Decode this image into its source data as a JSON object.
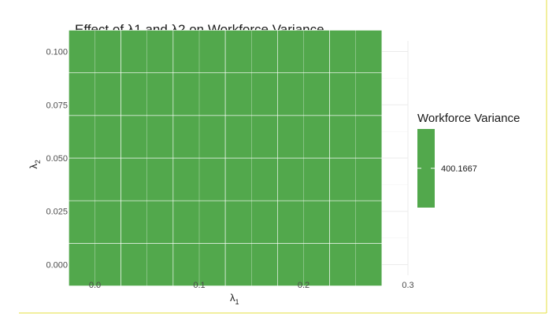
{
  "chart_data": {
    "type": "heatmap",
    "title": "Effect of λ1 and λ2 on Workforce Variance",
    "xlabel": "λ",
    "xlabel_sub": "1",
    "ylabel": "λ",
    "ylabel_sub": "2",
    "x": [
      0.0,
      0.05,
      0.1,
      0.15,
      0.2,
      0.25
    ],
    "y": [
      0.0,
      0.02,
      0.04,
      0.06,
      0.08,
      0.1
    ],
    "xlim": [
      -0.02,
      0.3
    ],
    "ylim": [
      -0.005,
      0.105
    ],
    "x_ticks": [
      0.0,
      0.1,
      0.2,
      0.3
    ],
    "x_tick_labels": [
      "0.0",
      "0.1",
      "0.2",
      "0.3"
    ],
    "y_ticks": [
      0.0,
      0.025,
      0.05,
      0.075,
      0.1
    ],
    "y_tick_labels": [
      "0.000",
      "0.025",
      "0.050",
      "0.075",
      "0.100"
    ],
    "z_value": 400.1667,
    "fill_color": "#52a84c",
    "grid": true,
    "legend": {
      "title": "Workforce Variance",
      "label": "400.1667",
      "placement": "right"
    }
  }
}
